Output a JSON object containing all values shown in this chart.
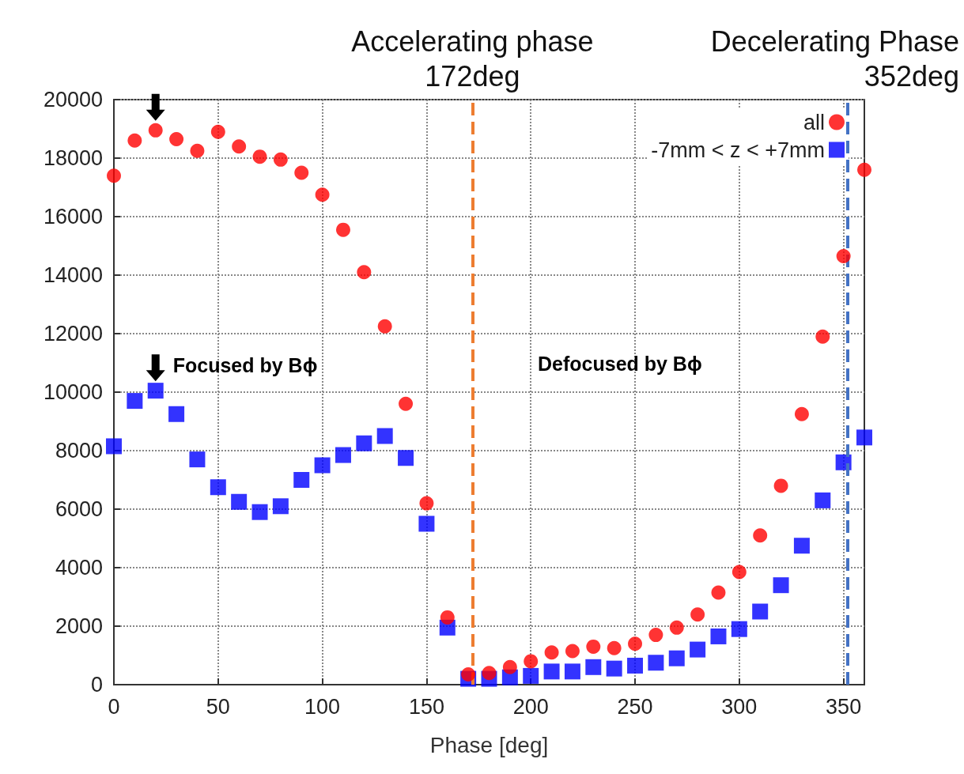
{
  "chart_data": {
    "type": "scatter",
    "xlabel": "Phase [deg]",
    "x": [
      0,
      10,
      20,
      30,
      40,
      50,
      60,
      70,
      80,
      90,
      100,
      110,
      120,
      130,
      140,
      150,
      160,
      170,
      180,
      190,
      200,
      210,
      220,
      230,
      240,
      250,
      260,
      270,
      280,
      290,
      300,
      310,
      320,
      330,
      340,
      350,
      360
    ],
    "series": [
      {
        "name": "all",
        "color": "#ff0000",
        "marker": "circle",
        "values": [
          17400,
          18600,
          18950,
          18650,
          18250,
          18900,
          18400,
          18050,
          17950,
          17500,
          16750,
          15550,
          14100,
          12250,
          9600,
          6200,
          2300,
          350,
          400,
          600,
          800,
          1100,
          1150,
          1300,
          1250,
          1400,
          1700,
          1950,
          2400,
          3150,
          3850,
          5100,
          6800,
          9250,
          11900,
          14650,
          17600
        ]
      },
      {
        "name": "-7mm < z < +7mm",
        "color": "#0000ff",
        "marker": "square",
        "values": [
          8150,
          9700,
          10050,
          9250,
          7700,
          6750,
          6250,
          5900,
          6100,
          7000,
          7500,
          7850,
          8250,
          8500,
          7750,
          5500,
          1950,
          200,
          200,
          250,
          300,
          450,
          450,
          600,
          550,
          650,
          750,
          900,
          1200,
          1650,
          1900,
          2500,
          3400,
          4750,
          6300,
          7600,
          8450
        ]
      }
    ],
    "xlim": [
      0,
      360
    ],
    "xticks": [
      0,
      50,
      100,
      150,
      200,
      250,
      300,
      350
    ],
    "ylim": [
      0,
      20000
    ],
    "yticks": [
      0,
      2000,
      4000,
      6000,
      8000,
      10000,
      12000,
      14000,
      16000,
      18000,
      20000
    ],
    "grid": true,
    "legend": "top right",
    "ref_lines": [
      {
        "axis": "x",
        "value": 172,
        "label": "Accelerating phase\n172deg",
        "color": "#ed7d31",
        "line_style": "dashed"
      },
      {
        "axis": "x",
        "value": 352,
        "label": "Decelerating Phase\n352deg",
        "color": "#4472c4",
        "line_style": "dashed"
      }
    ],
    "annotations": [
      {
        "text": "Focused by Bϕ",
        "x": 20,
        "y": 10050
      },
      "Defocused by Bϕ"
    ]
  }
}
